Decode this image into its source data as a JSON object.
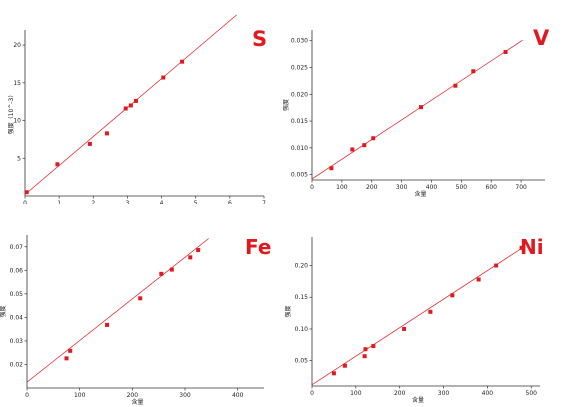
{
  "colors": {
    "series": "#e0191f",
    "fit_line": "#e0191f",
    "axis": "#333333",
    "panel_border": "#d6d6d6",
    "separator": "#dcdcdc"
  },
  "chart_data": [
    {
      "type": "scatter",
      "title": "S",
      "xlabel": "",
      "ylabel": "强度（10^-3）",
      "xlim": [
        0,
        7
      ],
      "ylim": [
        0,
        22
      ],
      "xticks": [
        0,
        1,
        2,
        3,
        4,
        5,
        6,
        7
      ],
      "xtick_labels": [
        "0",
        "1",
        "2",
        "3",
        "4",
        "5",
        "6",
        "7"
      ],
      "yticks": [
        5,
        10,
        15,
        20
      ],
      "ytick_labels": [
        "5",
        "10",
        "15",
        "20"
      ],
      "points": [
        {
          "x": 0.05,
          "y": 0.5
        },
        {
          "x": 0.95,
          "y": 4.2
        },
        {
          "x": 1.9,
          "y": 6.9
        },
        {
          "x": 2.4,
          "y": 8.3
        },
        {
          "x": 2.95,
          "y": 11.6
        },
        {
          "x": 3.1,
          "y": 12.0
        },
        {
          "x": 3.25,
          "y": 12.6
        },
        {
          "x": 4.05,
          "y": 15.7
        },
        {
          "x": 4.6,
          "y": 17.8
        }
      ],
      "fit_line": [
        [
          0,
          0.2
        ],
        [
          6.2,
          24.0
        ]
      ],
      "grid": false
    },
    {
      "type": "scatter",
      "title": "V",
      "xlabel": "含量",
      "ylabel": "强度",
      "xlim": [
        0,
        780
      ],
      "ylim": [
        0.004,
        0.032
      ],
      "xticks": [
        0,
        100,
        200,
        300,
        400,
        500,
        600,
        700
      ],
      "xtick_labels": [
        "0",
        "100",
        "200",
        "300",
        "400",
        "500",
        "600",
        "700"
      ],
      "yticks": [
        0.005,
        0.01,
        0.015,
        0.02,
        0.025,
        0.03
      ],
      "ytick_labels": [
        "0.005",
        "0.010",
        "0.015",
        "0.020",
        "0.025",
        "0.030"
      ],
      "points": [
        {
          "x": 65,
          "y": 0.0062
        },
        {
          "x": 135,
          "y": 0.0097
        },
        {
          "x": 175,
          "y": 0.0105
        },
        {
          "x": 205,
          "y": 0.0118
        },
        {
          "x": 365,
          "y": 0.0176
        },
        {
          "x": 480,
          "y": 0.0216
        },
        {
          "x": 540,
          "y": 0.0243
        },
        {
          "x": 648,
          "y": 0.0279
        }
      ],
      "fit_line": [
        [
          0,
          0.0042
        ],
        [
          705,
          0.0301
        ]
      ],
      "grid": false
    },
    {
      "type": "scatter",
      "title": "Fe",
      "xlabel": "含量",
      "ylabel": "强度",
      "xlim": [
        0,
        450
      ],
      "ylim": [
        0.01,
        0.075
      ],
      "xticks": [
        0,
        100,
        200,
        300,
        400
      ],
      "xtick_labels": [
        "0",
        "100",
        "200",
        "300",
        "400"
      ],
      "yticks": [
        0.02,
        0.03,
        0.04,
        0.05,
        0.06,
        0.07
      ],
      "ytick_labels": [
        "0.02",
        "0.03",
        "0.04",
        "0.05",
        "0.06",
        "0.07"
      ],
      "points": [
        {
          "x": 75,
          "y": 0.0226
        },
        {
          "x": 82,
          "y": 0.0258
        },
        {
          "x": 152,
          "y": 0.0368
        },
        {
          "x": 215,
          "y": 0.0481
        },
        {
          "x": 255,
          "y": 0.0585
        },
        {
          "x": 275,
          "y": 0.0603
        },
        {
          "x": 310,
          "y": 0.0655
        },
        {
          "x": 325,
          "y": 0.0686
        }
      ],
      "fit_line": [
        [
          0,
          0.0125
        ],
        [
          345,
          0.0735
        ]
      ],
      "grid": false
    },
    {
      "type": "scatter",
      "title": "Ni",
      "xlabel": "含量",
      "ylabel": "强度",
      "xlim": [
        0,
        520
      ],
      "ylim": [
        0.01,
        0.245
      ],
      "xticks": [
        0,
        100,
        200,
        300,
        400,
        500
      ],
      "xtick_labels": [
        "0",
        "100",
        "200",
        "300",
        "400",
        "500"
      ],
      "yticks": [
        0.05,
        0.1,
        0.15,
        0.2
      ],
      "ytick_labels": [
        "0.05",
        "0.10",
        "0.15",
        "0.20"
      ],
      "points": [
        {
          "x": 50,
          "y": 0.03
        },
        {
          "x": 75,
          "y": 0.042
        },
        {
          "x": 120,
          "y": 0.057
        },
        {
          "x": 122,
          "y": 0.068
        },
        {
          "x": 140,
          "y": 0.073
        },
        {
          "x": 210,
          "y": 0.1
        },
        {
          "x": 270,
          "y": 0.127
        },
        {
          "x": 320,
          "y": 0.153
        },
        {
          "x": 380,
          "y": 0.178
        },
        {
          "x": 420,
          "y": 0.2
        },
        {
          "x": 478,
          "y": 0.228
        }
      ],
      "fit_line": [
        [
          0,
          0.012
        ],
        [
          480,
          0.228
        ]
      ],
      "grid": false
    }
  ]
}
